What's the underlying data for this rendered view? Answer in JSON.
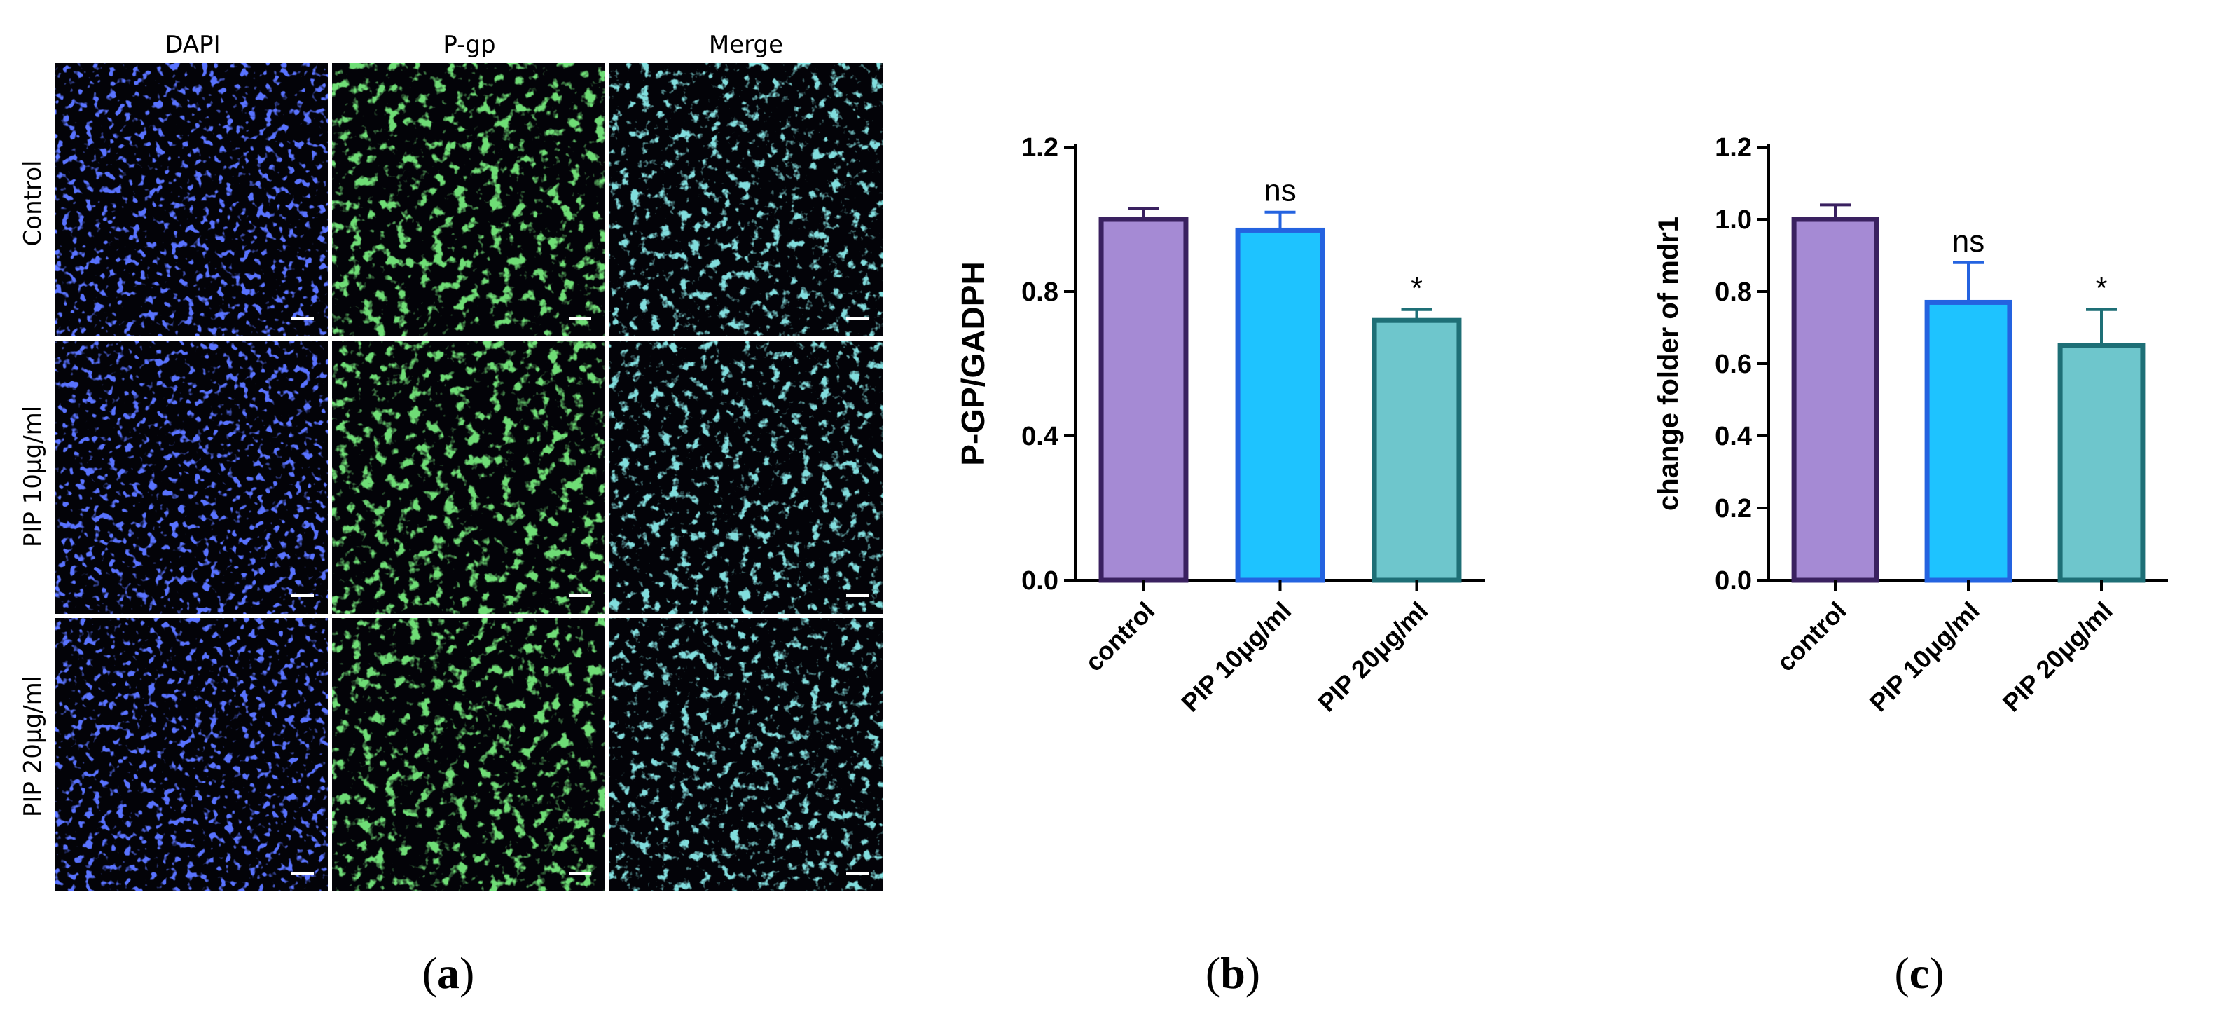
{
  "panel_labels": [
    "a",
    "b",
    "c"
  ],
  "microscopy": {
    "columns": [
      "DAPI",
      "P-gp",
      "Merge"
    ],
    "rows": [
      "Control",
      "PIP 10μg/ml",
      "PIP 20μg/ml"
    ],
    "colors": {
      "dapi": "#1a2cff",
      "pgp": "#2dbe2d",
      "merge": "#3fb7b0"
    }
  },
  "chart_data": [
    {
      "type": "bar",
      "categories": [
        "control",
        "PIP 10μg/ml",
        "PIP 20μg/ml"
      ],
      "values": [
        1.0,
        0.97,
        0.72
      ],
      "errors": [
        0.03,
        0.05,
        0.03
      ],
      "significance": [
        "",
        "ns",
        "*"
      ],
      "ylabel": "P-GP/GADPH",
      "ylim": [
        0,
        1.2
      ],
      "yticks": [
        "0.0",
        "0.4",
        "0.8",
        "1.2"
      ],
      "yticks_values": [
        0,
        0.4,
        0.8,
        1.2
      ],
      "fill_colors": [
        "#a58ad4",
        "#1ec3ff",
        "#6ec6cc"
      ],
      "edge_colors": [
        "#3a2160",
        "#2463e0",
        "#1e6f76"
      ]
    },
    {
      "type": "bar",
      "categories": [
        "control",
        "PIP 10μg/ml",
        "PIP 20μg/ml"
      ],
      "values": [
        1.0,
        0.77,
        0.65
      ],
      "errors": [
        0.04,
        0.11,
        0.1
      ],
      "significance": [
        "",
        "ns",
        "*"
      ],
      "ylabel": "change folder of mdr1",
      "ylim": [
        0,
        1.2
      ],
      "yticks": [
        "0.0",
        "0.2",
        "0.4",
        "0.6",
        "0.8",
        "1.0",
        "1.2"
      ],
      "yticks_values": [
        0,
        0.2,
        0.4,
        0.6,
        0.8,
        1.0,
        1.2
      ],
      "fill_colors": [
        "#a58ad4",
        "#1ec3ff",
        "#6ec6cc"
      ],
      "edge_colors": [
        "#3a2160",
        "#2463e0",
        "#1e6f76"
      ]
    }
  ]
}
